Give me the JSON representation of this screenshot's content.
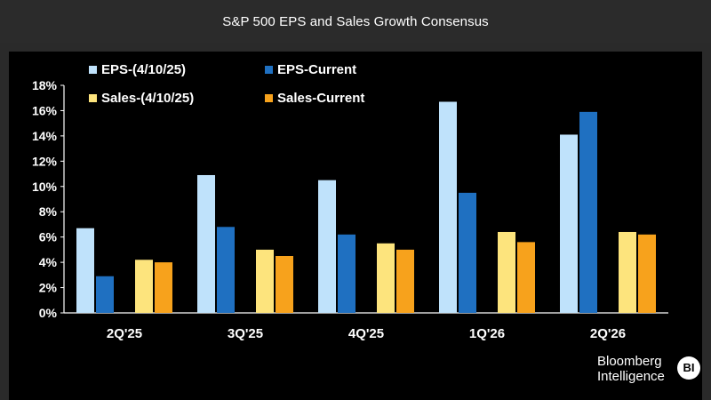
{
  "header": {
    "title": "S&P 500 EPS and Sales Growth Consensus"
  },
  "brand": {
    "line1": "Bloomberg",
    "line2": "Intelligence",
    "badge": "BI"
  },
  "chart_data": {
    "type": "bar",
    "title": "S&P 500 EPS and Sales Growth Consensus",
    "xlabel": "",
    "ylabel": "",
    "ylim": [
      0,
      18
    ],
    "yticks": [
      0,
      2,
      4,
      6,
      8,
      10,
      12,
      14,
      16,
      18
    ],
    "ytick_format": "%",
    "grid": false,
    "legend_placement": "top-left",
    "categories": [
      "2Q'25",
      "3Q'25",
      "4Q'25",
      "1Q'26",
      "2Q'26"
    ],
    "series": [
      {
        "name": "EPS-(4/10/25)",
        "color": "#bfe2fb",
        "values": [
          6.7,
          10.9,
          10.5,
          16.7,
          14.1
        ]
      },
      {
        "name": "EPS-Current",
        "color": "#1f70c1",
        "values": [
          2.9,
          6.8,
          6.2,
          9.5,
          15.9
        ]
      },
      {
        "name": "Sales-(4/10/25)",
        "color": "#fde47d",
        "values": [
          4.2,
          5.0,
          5.5,
          6.4,
          6.4
        ]
      },
      {
        "name": "Sales-Current",
        "color": "#f7a21c",
        "values": [
          4.0,
          4.5,
          5.0,
          5.6,
          6.2
        ]
      }
    ]
  }
}
